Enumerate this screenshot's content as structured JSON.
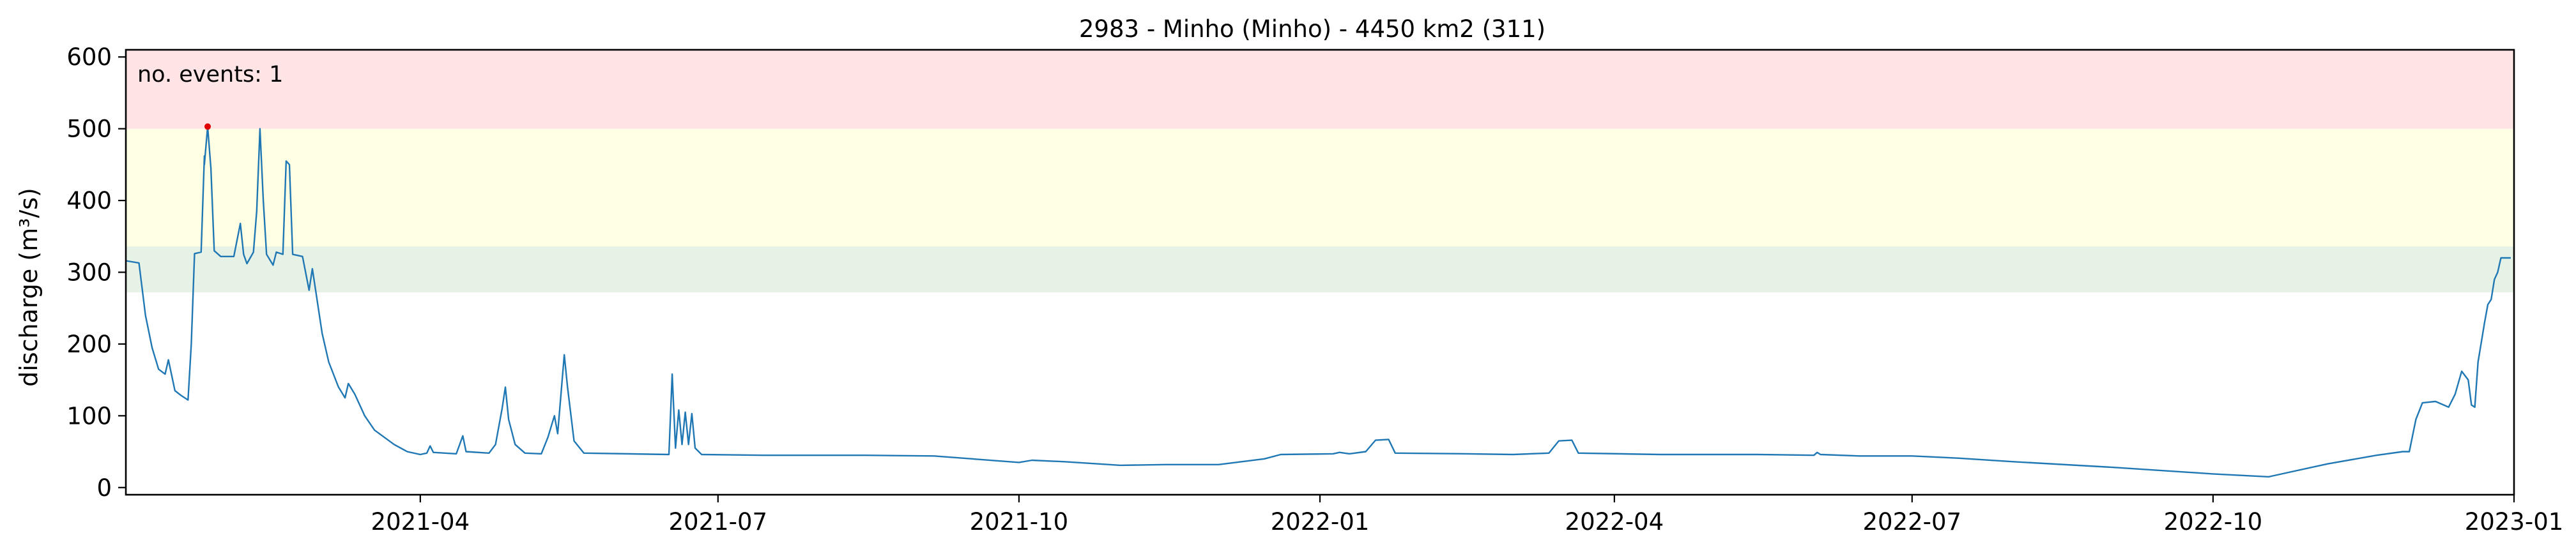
{
  "chart_data": {
    "type": "line",
    "title": "2983 - Minho (Minho) - 4450 km2 (311)",
    "ylabel": "discharge (m³/s)",
    "xlabel": "",
    "xlim": [
      "2021-01-01",
      "2023-01-01"
    ],
    "ylim": [
      -10,
      610
    ],
    "grid": false,
    "x_ticks": [
      "2021-04",
      "2021-07",
      "2021-10",
      "2022-01",
      "2022-04",
      "2022-07",
      "2022-10",
      "2023-01"
    ],
    "y_ticks": [
      0,
      100,
      200,
      300,
      400,
      500,
      600
    ],
    "threshold_bands": [
      {
        "from": 272,
        "to": 336,
        "color": "#e6f2e6"
      },
      {
        "from": 336,
        "to": 500,
        "color": "#ffffe4"
      },
      {
        "from": 500,
        "to": 610,
        "color": "#ffe4e6"
      }
    ],
    "annotation": {
      "text": "no. events: 1",
      "color": "#e00000"
    },
    "event_point": {
      "x": "2021-01-26",
      "y": 503,
      "color": "#e00000"
    },
    "series": [
      {
        "color": "#1f77b4",
        "points": [
          [
            "2021-01-01",
            316
          ],
          [
            "2021-01-05",
            313
          ],
          [
            "2021-01-07",
            240
          ],
          [
            "2021-01-09",
            195
          ],
          [
            "2021-01-11",
            165
          ],
          [
            "2021-01-13",
            158
          ],
          [
            "2021-01-14",
            178
          ],
          [
            "2021-01-16",
            135
          ],
          [
            "2021-01-18",
            128
          ],
          [
            "2021-01-20",
            122
          ],
          [
            "2021-01-21",
            200
          ],
          [
            "2021-01-22",
            326
          ],
          [
            "2021-01-24",
            328
          ],
          [
            "2021-01-25",
            462
          ],
          [
            "2021-01-25",
            450
          ],
          [
            "2021-01-26",
            503
          ],
          [
            "2021-01-27",
            445
          ],
          [
            "2021-01-28",
            330
          ],
          [
            "2021-01-30",
            322
          ],
          [
            "2021-02-03",
            322
          ],
          [
            "2021-02-05",
            368
          ],
          [
            "2021-02-06",
            325
          ],
          [
            "2021-02-07",
            312
          ],
          [
            "2021-02-09",
            328
          ],
          [
            "2021-02-10",
            385
          ],
          [
            "2021-02-11",
            500
          ],
          [
            "2021-02-12",
            400
          ],
          [
            "2021-02-13",
            325
          ],
          [
            "2021-02-15",
            310
          ],
          [
            "2021-02-16",
            328
          ],
          [
            "2021-02-18",
            325
          ],
          [
            "2021-02-19",
            455
          ],
          [
            "2021-02-20",
            450
          ],
          [
            "2021-02-21",
            325
          ],
          [
            "2021-02-24",
            322
          ],
          [
            "2021-02-26",
            275
          ],
          [
            "2021-02-27",
            305
          ],
          [
            "2021-02-28",
            275
          ],
          [
            "2021-03-02",
            215
          ],
          [
            "2021-03-04",
            175
          ],
          [
            "2021-03-07",
            140
          ],
          [
            "2021-03-09",
            125
          ],
          [
            "2021-03-10",
            145
          ],
          [
            "2021-03-12",
            130
          ],
          [
            "2021-03-15",
            100
          ],
          [
            "2021-03-18",
            80
          ],
          [
            "2021-03-24",
            60
          ],
          [
            "2021-03-28",
            50
          ],
          [
            "2021-04-01",
            46
          ],
          [
            "2021-04-03",
            48
          ],
          [
            "2021-04-04",
            58
          ],
          [
            "2021-04-05",
            49
          ],
          [
            "2021-04-12",
            47
          ],
          [
            "2021-04-14",
            72
          ],
          [
            "2021-04-15",
            50
          ],
          [
            "2021-04-22",
            48
          ],
          [
            "2021-04-24",
            60
          ],
          [
            "2021-04-26",
            110
          ],
          [
            "2021-04-27",
            140
          ],
          [
            "2021-04-28",
            95
          ],
          [
            "2021-04-30",
            60
          ],
          [
            "2021-05-03",
            48
          ],
          [
            "2021-05-08",
            47
          ],
          [
            "2021-05-10",
            70
          ],
          [
            "2021-05-12",
            100
          ],
          [
            "2021-05-13",
            75
          ],
          [
            "2021-05-15",
            185
          ],
          [
            "2021-05-16",
            140
          ],
          [
            "2021-05-18",
            65
          ],
          [
            "2021-05-21",
            48
          ],
          [
            "2021-06-16",
            46
          ],
          [
            "2021-06-17",
            158
          ],
          [
            "2021-06-18",
            55
          ],
          [
            "2021-06-19",
            108
          ],
          [
            "2021-06-20",
            60
          ],
          [
            "2021-06-21",
            105
          ],
          [
            "2021-06-22",
            60
          ],
          [
            "2021-06-23",
            103
          ],
          [
            "2021-06-24",
            55
          ],
          [
            "2021-06-26",
            46
          ],
          [
            "2021-07-15",
            45
          ],
          [
            "2021-08-15",
            45
          ],
          [
            "2021-09-05",
            44
          ],
          [
            "2021-10-01",
            35
          ],
          [
            "2021-10-05",
            38
          ],
          [
            "2021-10-15",
            36
          ],
          [
            "2021-11-01",
            31
          ],
          [
            "2021-11-15",
            32
          ],
          [
            "2021-12-01",
            32
          ],
          [
            "2021-12-15",
            40
          ],
          [
            "2021-12-20",
            46
          ],
          [
            "2022-01-05",
            47
          ],
          [
            "2022-01-07",
            49
          ],
          [
            "2022-01-10",
            47
          ],
          [
            "2022-01-15",
            50
          ],
          [
            "2022-01-18",
            66
          ],
          [
            "2022-01-22",
            67
          ],
          [
            "2022-01-24",
            48
          ],
          [
            "2022-02-15",
            47
          ],
          [
            "2022-03-01",
            46
          ],
          [
            "2022-03-12",
            48
          ],
          [
            "2022-03-15",
            65
          ],
          [
            "2022-03-19",
            66
          ],
          [
            "2022-03-21",
            48
          ],
          [
            "2022-04-15",
            46
          ],
          [
            "2022-05-15",
            46
          ],
          [
            "2022-06-01",
            45
          ],
          [
            "2022-06-02",
            49
          ],
          [
            "2022-06-03",
            46
          ],
          [
            "2022-06-15",
            44
          ],
          [
            "2022-07-01",
            44
          ],
          [
            "2022-07-15",
            41
          ],
          [
            "2022-08-01",
            36
          ],
          [
            "2022-09-01",
            28
          ],
          [
            "2022-10-01",
            19
          ],
          [
            "2022-10-18",
            15
          ],
          [
            "2022-10-25",
            22
          ],
          [
            "2022-11-05",
            33
          ],
          [
            "2022-11-20",
            45
          ],
          [
            "2022-11-28",
            50
          ],
          [
            "2022-11-30",
            50
          ],
          [
            "2022-12-02",
            95
          ],
          [
            "2022-12-04",
            118
          ],
          [
            "2022-12-08",
            120
          ],
          [
            "2022-12-12",
            112
          ],
          [
            "2022-12-14",
            130
          ],
          [
            "2022-12-16",
            162
          ],
          [
            "2022-12-18",
            150
          ],
          [
            "2022-12-19",
            115
          ],
          [
            "2022-12-20",
            112
          ],
          [
            "2022-12-21",
            175
          ],
          [
            "2022-12-23",
            230
          ],
          [
            "2022-12-24",
            255
          ],
          [
            "2022-12-25",
            262
          ],
          [
            "2022-12-26",
            290
          ],
          [
            "2022-12-27",
            300
          ],
          [
            "2022-12-28",
            320
          ],
          [
            "2022-12-31",
            320
          ]
        ]
      }
    ]
  }
}
